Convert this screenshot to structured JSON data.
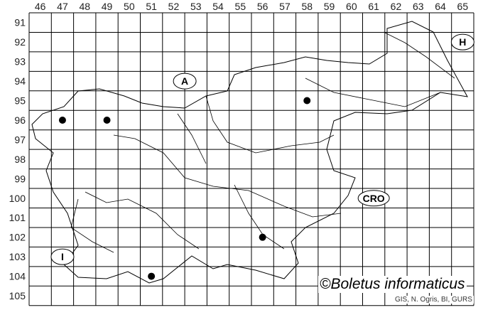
{
  "map": {
    "columns": [
      "46",
      "47",
      "48",
      "49",
      "50",
      "51",
      "52",
      "53",
      "54",
      "55",
      "56",
      "57",
      "58",
      "59",
      "60",
      "61",
      "62",
      "63",
      "64",
      "65"
    ],
    "rows": [
      "91",
      "92",
      "93",
      "94",
      "95",
      "96",
      "97",
      "98",
      "99",
      "100",
      "101",
      "102",
      "103",
      "104",
      "105"
    ],
    "country_labels": [
      {
        "text": "A",
        "col": "52.5",
        "row": "94"
      },
      {
        "text": "H",
        "col": "65",
        "row": "92"
      },
      {
        "text": "CRO",
        "col": "61",
        "row": "100"
      },
      {
        "text": "I",
        "col": "47",
        "row": "103"
      }
    ],
    "records": [
      {
        "col": 47,
        "row": 96
      },
      {
        "col": 49,
        "row": 96
      },
      {
        "col": 58,
        "row": 95
      },
      {
        "col": 56,
        "row": 102
      },
      {
        "col": 51,
        "row": 104
      }
    ],
    "record_color": "#000000"
  },
  "copyright": "©Boletus informaticus",
  "credit": "GIS, N. Ogris, BI, GURS"
}
